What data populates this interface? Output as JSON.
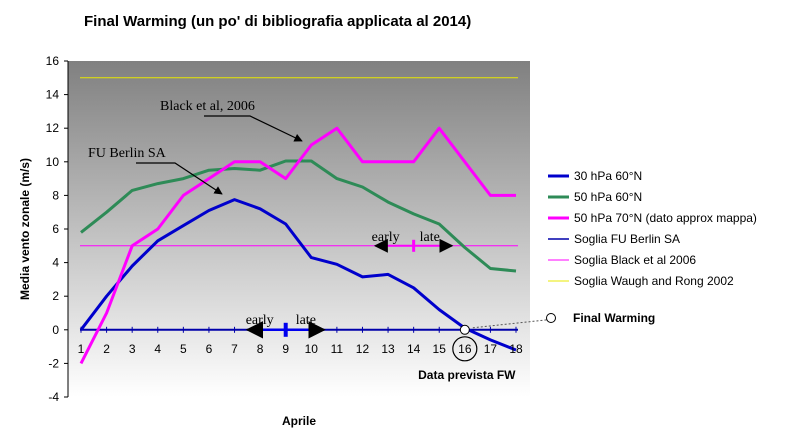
{
  "chart_data": {
    "type": "line",
    "title": "Final Warming (un po' di bibliografia applicata al 2014)",
    "xlabel": "Aprile",
    "ylabel": "Media vento zonale (m/s)",
    "ylim": [
      -4,
      16
    ],
    "yticks": [
      "-4",
      "-2",
      "0",
      "2",
      "4",
      "6",
      "8",
      "10",
      "12",
      "14",
      "16"
    ],
    "categories": [
      "1",
      "2",
      "3",
      "4",
      "5",
      "6",
      "7",
      "8",
      "9",
      "10",
      "11",
      "12",
      "13",
      "14",
      "15",
      "16",
      "17",
      "18"
    ],
    "grid": false,
    "legend_position": "right",
    "series": [
      {
        "name": "30 hPa 60°N",
        "color": "#0000cc",
        "values": [
          0,
          2,
          3.8,
          5.3,
          6.2,
          7.1,
          7.75,
          7.2,
          6.3,
          4.3,
          3.9,
          3.15,
          3.3,
          2.5,
          1.2,
          0.1,
          -0.6,
          -1.2
        ]
      },
      {
        "name": "50 hPa 60°N",
        "color": "#2e8b57",
        "values": [
          5.8,
          7,
          8.3,
          8.7,
          9,
          9.5,
          9.6,
          9.5,
          10.05,
          10.05,
          9,
          8.5,
          7.6,
          6.9,
          6.3,
          4.9,
          3.65,
          3.5
        ]
      },
      {
        "name": "50 hPa 70°N (dato approx mappa)",
        "color": "#ff00ff",
        "values": [
          -2,
          1,
          5,
          6,
          8,
          9,
          10,
          10,
          9,
          11,
          12,
          10,
          10,
          10,
          12,
          10,
          8,
          8
        ]
      },
      {
        "name": "Soglia FU Berlin SA",
        "color": "#0000aa",
        "threshold": 0
      },
      {
        "name": "Soglia Black et al 2006",
        "color": "#ff00ff",
        "threshold": 5
      },
      {
        "name": "Soglia Waugh and Rong 2002",
        "color": "#e8e800",
        "threshold": 15
      }
    ],
    "annotations": {
      "black": "Black et al, 2006",
      "berlin": "FU Berlin SA",
      "early_black": "early",
      "late_black": "late",
      "early_berlin": "early",
      "late_berlin": "late",
      "final_warming": "Final Warming",
      "data_prevista": "Data prevista FW",
      "fw_day": 16,
      "black_window": {
        "center": 14,
        "from": 12.5,
        "to": 15.5,
        "level": 5
      },
      "berlin_window": {
        "center": 9,
        "from": 7.5,
        "to": 10.5,
        "level": 0
      }
    },
    "colors": {
      "plot_bg_top": "#808080",
      "plot_bg_bottom": "#ffffff"
    }
  }
}
